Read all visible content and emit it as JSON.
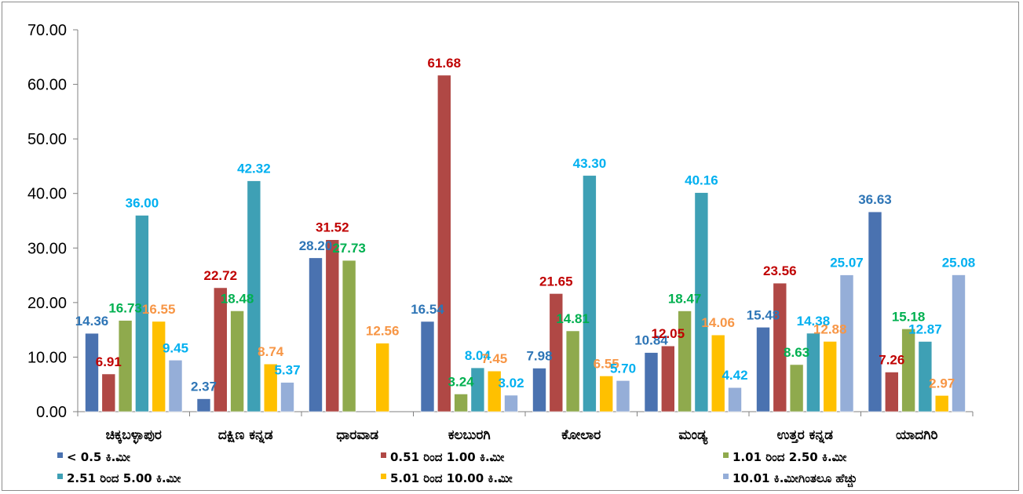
{
  "chart_data": {
    "type": "bar",
    "categories": [
      "ಚಿಕ್ಕಬಳ್ಳಾಪುರ",
      "ದಕ್ಷಿಣ ಕನ್ನಡ",
      "ಧಾರವಾಡ",
      "ಕಲಬುರಗಿ",
      "ಕೋಲಾರ",
      "ಮಂಡ್ಯ",
      "ಉತ್ತರ ಕನ್ನಡ",
      "ಯಾದಗಿರಿ"
    ],
    "series": [
      {
        "name": "< 0.5 ಕಿ.ಮೀ",
        "color": "#4a72b0",
        "label_color": "#2e75b6",
        "values": [
          14.36,
          2.37,
          28.2,
          16.54,
          7.98,
          10.84,
          15.48,
          36.63
        ],
        "labels": [
          "14.36",
          "2.37",
          "28.20",
          "16.54",
          "7.98",
          "10.84",
          "15.48",
          "36.63"
        ]
      },
      {
        "name": "0.51 ರಿಂದ 1.00 ಕಿ.ಮೀ",
        "color": "#b04845",
        "label_color": "#c00000",
        "values": [
          6.91,
          22.72,
          31.52,
          61.68,
          21.65,
          12.05,
          23.56,
          7.26
        ],
        "labels": [
          "6.91",
          "22.72",
          "31.52",
          "61.68",
          "21.65",
          "12.05",
          "23.56",
          "7.26"
        ]
      },
      {
        "name": "1.01 ರಿಂದ 2.50 ಕಿ.ಮೀ",
        "color": "#8faa4d",
        "label_color": "#00b050",
        "values": [
          16.73,
          18.48,
          27.73,
          3.24,
          14.81,
          18.47,
          8.63,
          15.18
        ],
        "labels": [
          "16.73",
          "18.48",
          "27.73",
          "3.24",
          "14.81",
          "18.47",
          "8.63",
          "15.18"
        ]
      },
      {
        "name": "2.51 ರಿಂದ 5.00 ಕಿ.ಮೀ",
        "color": "#3ea0b5",
        "label_color": "#00b0f0",
        "values": [
          36.0,
          42.32,
          null,
          8.04,
          43.3,
          40.16,
          14.38,
          12.87
        ],
        "labels": [
          "36.00",
          "42.32",
          "",
          "8.04",
          "43.30",
          "40.16",
          "14.38",
          "12.87"
        ]
      },
      {
        "name": "5.01 ರಿಂದ 10.00 ಕಿ.ಮೀ",
        "color": "#ffc000",
        "label_color": "#f79646",
        "values": [
          16.55,
          8.74,
          12.56,
          7.45,
          6.55,
          14.06,
          12.88,
          2.97
        ],
        "labels": [
          "16.55",
          "8.74",
          "12.56",
          "7.45",
          "6.55",
          "14.06",
          "12.88",
          "2.97"
        ]
      },
      {
        "name": "10.01 ಕಿ.ಮೀಗಿಂತಲೂ ಹೆಚ್ಚು",
        "color": "#95aed8",
        "label_color": "#00b0f0",
        "values": [
          9.45,
          5.37,
          null,
          3.02,
          5.7,
          4.42,
          25.07,
          25.08
        ],
        "labels": [
          "9.45",
          "5.37",
          "",
          "3.02",
          "5.70",
          "4.42",
          "25.07",
          "25.08"
        ]
      }
    ],
    "y_ticks": [
      "0.00",
      "10.00",
      "20.00",
      "30.00",
      "40.00",
      "50.00",
      "60.00",
      "70.00"
    ],
    "ylim": [
      0,
      70
    ],
    "title": "",
    "xlabel": "",
    "ylabel": "",
    "grid": false,
    "legend_position": "bottom"
  }
}
